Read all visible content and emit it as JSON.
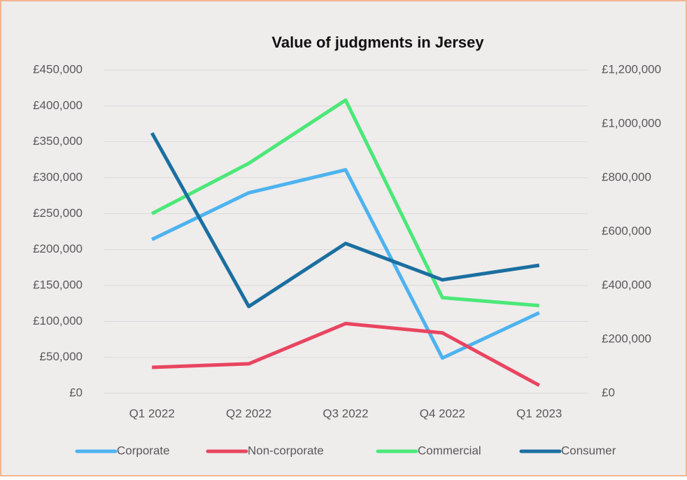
{
  "chart_data": {
    "type": "line",
    "title": "Value of judgments in Jersey",
    "categories": [
      "Q1 2022",
      "Q2 2022",
      "Q3 2022",
      "Q4 2022",
      "Q1 2023"
    ],
    "series": [
      {
        "name": "Corporate",
        "color": "#4db3ef",
        "values": [
          214000,
          279000,
          311000,
          49000,
          112000
        ]
      },
      {
        "name": "Non-corporate",
        "color": "#e94560",
        "values": [
          36000,
          41000,
          97000,
          84000,
          11000
        ]
      },
      {
        "name": "Commercial",
        "color": "#4be878",
        "values": [
          250000,
          320000,
          408000,
          133000,
          122000
        ]
      },
      {
        "name": "Consumer",
        "color": "#1a6fa0",
        "axis": "y2",
        "values": [
          966000,
          322000,
          556000,
          421000,
          475000
        ]
      }
    ],
    "ylim": [
      0,
      450000
    ],
    "yticks": [
      {
        "value": 0,
        "label": "£0"
      },
      {
        "value": 50000,
        "label": "£50,000"
      },
      {
        "value": 100000,
        "label": "£100,000"
      },
      {
        "value": 150000,
        "label": "£150,000"
      },
      {
        "value": 200000,
        "label": "£200,000"
      },
      {
        "value": 250000,
        "label": "£250,000"
      },
      {
        "value": 300000,
        "label": "£300,000"
      },
      {
        "value": 350000,
        "label": "£350,000"
      },
      {
        "value": 400000,
        "label": "£400,000"
      },
      {
        "value": 450000,
        "label": "£450,000"
      }
    ],
    "y2lim": [
      0,
      1200000
    ],
    "y2ticks": [
      {
        "value": 0,
        "label": "£0"
      },
      {
        "value": 200000,
        "label": "£200,000"
      },
      {
        "value": 400000,
        "label": "£400,000"
      },
      {
        "value": 600000,
        "label": "£600,000"
      },
      {
        "value": 800000,
        "label": "£800,000"
      },
      {
        "value": 1000000,
        "label": "£1,000,000"
      },
      {
        "value": 1200000,
        "label": "£1,200,000"
      }
    ],
    "grid": true,
    "legend": "bottom"
  }
}
